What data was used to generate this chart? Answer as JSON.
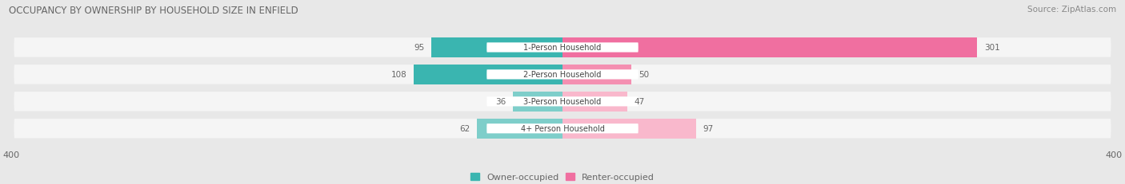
{
  "title": "OCCUPANCY BY OWNERSHIP BY HOUSEHOLD SIZE IN ENFIELD",
  "source": "Source: ZipAtlas.com",
  "categories": [
    "1-Person Household",
    "2-Person Household",
    "3-Person Household",
    "4+ Person Household"
  ],
  "owner_values": [
    95,
    108,
    36,
    62
  ],
  "renter_values": [
    301,
    50,
    47,
    97
  ],
  "owner_colors": [
    "#3ab5b0",
    "#3ab5b0",
    "#7ececa",
    "#7ececa"
  ],
  "renter_colors": [
    "#f06fa0",
    "#f48fb1",
    "#f9b8cc",
    "#f9b8cc"
  ],
  "axis_max": 400,
  "bg_color": "#e8e8e8",
  "bar_bg_color": "#f5f5f5",
  "label_color": "#666666",
  "title_color": "#666666",
  "source_color": "#888888",
  "legend_owner": "Owner-occupied",
  "legend_renter": "Renter-occupied"
}
